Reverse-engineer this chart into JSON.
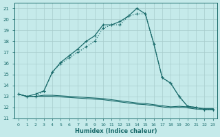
{
  "title": "",
  "xlabel": "Humidex (Indice chaleur)",
  "bg_color": "#c5eaea",
  "grid_color": "#a8cccc",
  "line_color": "#1a6b6b",
  "xlim": [
    -0.5,
    23.5
  ],
  "ylim": [
    11,
    21.5
  ],
  "xtick_labels": [
    "0",
    "1",
    "2",
    "3",
    "4",
    "5",
    "6",
    "7",
    "8",
    "9",
    "10",
    "11",
    "12",
    "13",
    "14",
    "15",
    "16",
    "17",
    "18",
    "19",
    "20",
    "21",
    "22",
    "23"
  ],
  "ytick_labels": [
    "11",
    "12",
    "13",
    "14",
    "15",
    "16",
    "17",
    "18",
    "19",
    "20",
    "21"
  ],
  "line1": {
    "y": [
      13.2,
      13.0,
      13.0,
      13.1,
      13.1,
      13.05,
      13.0,
      12.95,
      12.9,
      12.85,
      12.8,
      12.7,
      12.6,
      12.5,
      12.4,
      12.35,
      12.25,
      12.15,
      12.05,
      12.1,
      12.05,
      11.95,
      11.9,
      11.9
    ]
  },
  "line2": {
    "y": [
      13.2,
      13.0,
      13.0,
      13.0,
      13.0,
      12.95,
      12.9,
      12.85,
      12.8,
      12.75,
      12.7,
      12.6,
      12.5,
      12.4,
      12.3,
      12.25,
      12.15,
      12.05,
      11.95,
      12.0,
      11.95,
      11.85,
      11.8,
      11.8
    ]
  },
  "line3": {
    "y": [
      13.2,
      13.0,
      13.0,
      13.5,
      15.2,
      16.0,
      16.5,
      17.0,
      17.5,
      18.0,
      19.2,
      19.5,
      19.5,
      20.3,
      20.5,
      20.5,
      17.8,
      14.7,
      14.2,
      13.0,
      12.1,
      12.0,
      11.8,
      11.8
    ],
    "linestyle": ":"
  },
  "line4": {
    "y": [
      13.2,
      13.0,
      13.2,
      13.5,
      15.2,
      16.1,
      16.7,
      17.3,
      18.0,
      18.5,
      19.5,
      19.5,
      19.8,
      20.3,
      21.0,
      20.5,
      17.8,
      14.7,
      14.2,
      13.0,
      12.1,
      12.0,
      11.8,
      11.8
    ],
    "linestyle": "-"
  }
}
